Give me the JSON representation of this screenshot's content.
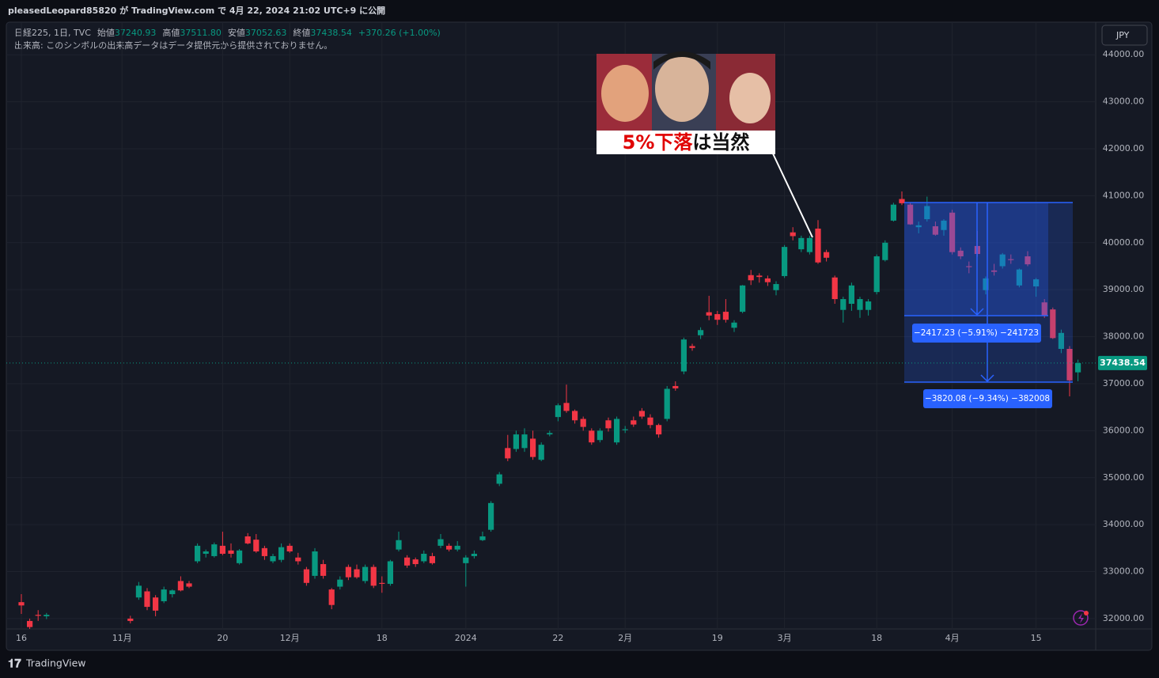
{
  "header": {
    "published": "pleasedLeopard85820 が TradingView.com で 4月 22, 2024 21:02 UTC+9 に公開"
  },
  "legend": {
    "symbol": "日経225, 1日, TVC",
    "open_label": "始値",
    "open": "37240.93",
    "high_label": "高値",
    "high": "37511.80",
    "low_label": "安値",
    "low": "37052.63",
    "close_label": "終値",
    "close": "37438.54",
    "change": "+370.26 (+1.00%)",
    "volume_note": "出来高: このシンボルの出来高データはデータ提供元から提供されておりません。"
  },
  "currency": "JPY",
  "annotation": {
    "caption_red": "5%下落",
    "caption_black": "は当然"
  },
  "measurements": [
    "−2417.23 (−5.91%) −241723",
    "−3820.08 (−9.34%) −382008"
  ],
  "brand": "TradingView",
  "chart_data": {
    "type": "candlestick",
    "up_color": "#089981",
    "down_color": "#f23645",
    "grid": true,
    "ylim": [
      31780,
      44660
    ],
    "yticks": [
      {
        "value": 32000,
        "label": "32000.00"
      },
      {
        "value": 33000,
        "label": "33000.00"
      },
      {
        "value": 34000,
        "label": "34000.00"
      },
      {
        "value": 35000,
        "label": "35000.00"
      },
      {
        "value": 36000,
        "label": "36000.00"
      },
      {
        "value": 37000,
        "label": "37000.00"
      },
      {
        "value": 38000,
        "label": "38000.00"
      },
      {
        "value": 39000,
        "label": "39000.00"
      },
      {
        "value": 40000,
        "label": "40000.00"
      },
      {
        "value": 41000,
        "label": "41000.00"
      },
      {
        "value": 42000,
        "label": "42000.00"
      },
      {
        "value": 43000,
        "label": "43000.00"
      },
      {
        "value": 44000,
        "label": "44000.00"
      }
    ],
    "categories": [
      "16",
      null,
      null,
      null,
      null,
      null,
      null,
      null,
      null,
      null,
      null,
      null,
      "11月",
      null,
      null,
      null,
      null,
      null,
      null,
      null,
      null,
      null,
      null,
      null,
      "20",
      null,
      null,
      null,
      null,
      null,
      null,
      null,
      "12月",
      null,
      null,
      null,
      null,
      null,
      null,
      null,
      null,
      null,
      null,
      "18",
      null,
      null,
      null,
      null,
      null,
      null,
      null,
      null,
      null,
      "2024",
      null,
      null,
      null,
      null,
      null,
      null,
      null,
      null,
      null,
      null,
      "22",
      null,
      null,
      null,
      null,
      null,
      null,
      null,
      "2月",
      null,
      null,
      null,
      null,
      null,
      null,
      null,
      null,
      null,
      null,
      "19",
      null,
      null,
      null,
      null,
      null,
      null,
      null,
      "3月",
      null,
      null,
      null,
      null,
      null,
      null,
      null,
      null,
      null,
      null,
      "18",
      null,
      null,
      null,
      null,
      null,
      null,
      null,
      null,
      "4月",
      null,
      null,
      null,
      null,
      null,
      null,
      null,
      null,
      null,
      "15",
      null,
      null,
      null,
      null,
      null
    ],
    "open": [
      32350,
      31950,
      32080,
      32050,
      null,
      null,
      null,
      null,
      null,
      null,
      null,
      null,
      null,
      32000,
      32450,
      32580,
      32450,
      32370,
      32520,
      32800,
      32750,
      33220,
      33380,
      33330,
      33550,
      33450,
      33180,
      33750,
      33680,
      33500,
      33220,
      33250,
      33550,
      33300,
      33050,
      32910,
      33160,
      32620,
      32680,
      33100,
      33050,
      32800,
      33100,
      32760,
      32740,
      33470,
      33300,
      33260,
      33220,
      33330,
      33550,
      33550,
      33470,
      33180,
      33330,
      33670,
      33890,
      34870,
      35630,
      35610,
      35630,
      35830,
      35380,
      35920,
      36290,
      36590,
      36420,
      36250,
      36000,
      35800,
      36220,
      35750,
      36010,
      36220,
      36420,
      36280,
      36120,
      36250,
      36950,
      37260,
      37800,
      38030,
      38520,
      38480,
      38530,
      38190,
      38530,
      39310,
      39300,
      39240,
      38990,
      39290,
      40220,
      39860,
      39800,
      40300,
      39800,
      39260,
      38570,
      38700,
      38570,
      38570,
      38950,
      39630,
      40470,
      40930,
      40810,
      40330,
      40500,
      40350,
      40270,
      40640,
      39830,
      39500,
      39930,
      38990,
      39410,
      39500,
      39650,
      39090,
      39710,
      39070,
      38730,
      38580,
      37740,
      37740,
      37240.93
    ],
    "high": [
      32520,
      32000,
      32180,
      32120,
      null,
      null,
      null,
      null,
      null,
      null,
      null,
      null,
      null,
      32060,
      32780,
      32650,
      32500,
      32680,
      32620,
      32900,
      32800,
      33600,
      33470,
      33620,
      33850,
      33600,
      33480,
      33820,
      33800,
      33550,
      33380,
      33600,
      33600,
      33400,
      33100,
      33500,
      33250,
      32650,
      32900,
      33150,
      33150,
      33150,
      33150,
      32900,
      33250,
      33850,
      33350,
      33300,
      33450,
      33400,
      33800,
      33600,
      33650,
      33350,
      33450,
      33850,
      34500,
      35120,
      35910,
      36000,
      36050,
      36000,
      35750,
      36000,
      36580,
      36980,
      36450,
      36300,
      36050,
      36050,
      36280,
      36300,
      36100,
      36300,
      36480,
      36350,
      36150,
      36950,
      37050,
      37980,
      37850,
      38200,
      38870,
      38550,
      38800,
      38350,
      39100,
      39420,
      39350,
      39300,
      39180,
      39950,
      40330,
      40150,
      40150,
      40480,
      39850,
      39300,
      38850,
      39150,
      38850,
      38800,
      39750,
      40050,
      40850,
      41090,
      40850,
      40450,
      40980,
      40450,
      40500,
      40700,
      39900,
      39600,
      40250,
      39280,
      39550,
      39780,
      39750,
      39450,
      39820,
      39250,
      38800,
      38620,
      38150,
      37800,
      37511.8
    ],
    "low": [
      32100,
      31780,
      31950,
      31990,
      null,
      null,
      null,
      null,
      null,
      null,
      null,
      null,
      null,
      31900,
      32400,
      32180,
      32050,
      32330,
      32450,
      32580,
      32650,
      33180,
      33300,
      33300,
      33350,
      33300,
      33150,
      33580,
      33400,
      33250,
      33180,
      33200,
      33400,
      33150,
      32700,
      32850,
      32850,
      32200,
      32620,
      32820,
      32850,
      32750,
      32650,
      32550,
      32700,
      33430,
      33080,
      33100,
      33180,
      33150,
      33500,
      33430,
      33430,
      32680,
      33280,
      33650,
      33850,
      34820,
      35350,
      35550,
      35550,
      35380,
      35350,
      35880,
      36200,
      36380,
      36150,
      36000,
      35700,
      35750,
      35980,
      35700,
      35950,
      36080,
      36250,
      36050,
      35850,
      36200,
      36850,
      37200,
      37700,
      37950,
      38350,
      38250,
      38300,
      38100,
      38500,
      39100,
      39150,
      39080,
      38880,
      39250,
      40050,
      39800,
      39750,
      39550,
      39600,
      38700,
      38300,
      38550,
      38400,
      38450,
      38900,
      39600,
      40450,
      40800,
      40380,
      40200,
      40450,
      40150,
      40150,
      39750,
      39650,
      39350,
      39700,
      38900,
      39300,
      39450,
      39550,
      39050,
      39500,
      38850,
      38400,
      37950,
      37650,
      36730,
      37052.63
    ],
    "close": [
      32280,
      31820,
      32060,
      32080,
      null,
      null,
      null,
      null,
      null,
      null,
      null,
      null,
      null,
      31950,
      32700,
      32250,
      32170,
      32620,
      32600,
      32600,
      32680,
      33550,
      33430,
      33580,
      33380,
      33380,
      33450,
      33600,
      33430,
      33330,
      33330,
      33520,
      33430,
      33220,
      32760,
      33430,
      32910,
      32290,
      32830,
      32880,
      32880,
      33100,
      32700,
      32740,
      33220,
      33670,
      33130,
      33160,
      33380,
      33180,
      33690,
      33470,
      33550,
      33300,
      33380,
      33750,
      34460,
      35070,
      35410,
      35920,
      35920,
      35440,
      35700,
      35950,
      36540,
      36420,
      36220,
      36080,
      35750,
      36000,
      36050,
      36250,
      36030,
      36130,
      36300,
      36120,
      35920,
      36890,
      36900,
      37940,
      37760,
      38140,
      38450,
      38360,
      38360,
      38300,
      39090,
      39200,
      39270,
      39160,
      39120,
      39910,
      40140,
      40100,
      40100,
      39580,
      39680,
      38800,
      38800,
      39090,
      38800,
      38750,
      39710,
      40000,
      40810,
      40840,
      40390,
      40370,
      40780,
      40170,
      40470,
      39800,
      39710,
      39480,
      39760,
      39240,
      39380,
      39750,
      39630,
      39430,
      39540,
      39220,
      38450,
      37970,
      38080,
      37070,
      37438.54
    ]
  }
}
